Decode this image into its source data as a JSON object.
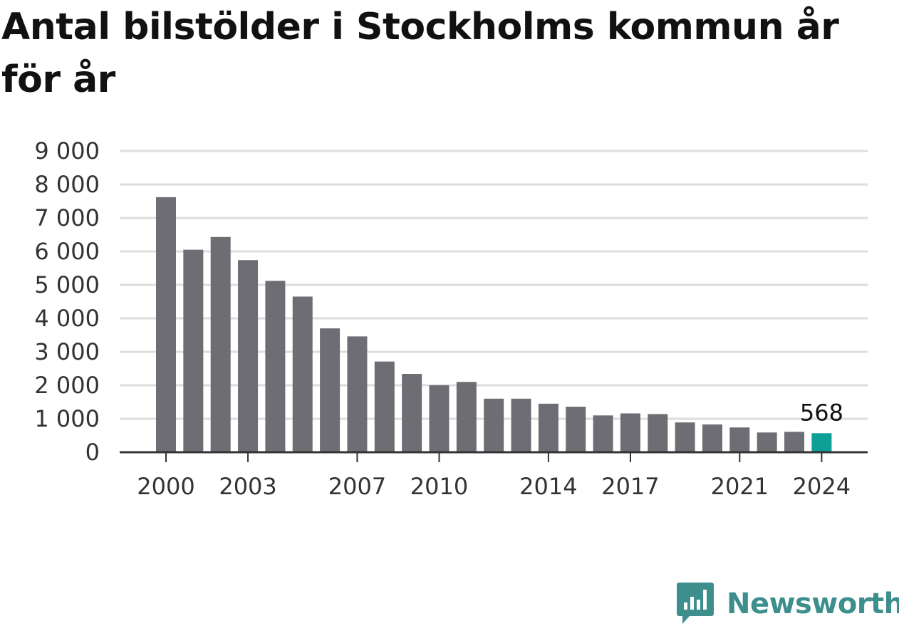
{
  "chart_data": {
    "type": "bar",
    "title": "Antal bilstölder i Stockholms kommun år för år",
    "xlabel": "",
    "ylabel": "",
    "ylim": [
      0,
      9000
    ],
    "y_ticks": [
      0,
      1000,
      2000,
      3000,
      4000,
      5000,
      6000,
      7000,
      8000,
      9000
    ],
    "y_tick_labels": [
      "0",
      "1 000",
      "2 000",
      "3 000",
      "4 000",
      "5 000",
      "6 000",
      "7 000",
      "8 000",
      "9 000"
    ],
    "x_tick_labels": [
      "2000",
      "2003",
      "2007",
      "2010",
      "2014",
      "2017",
      "2021",
      "2024"
    ],
    "grid": true,
    "categories": [
      "2000",
      "2001",
      "2002",
      "2003",
      "2004",
      "2005",
      "2006",
      "2007",
      "2008",
      "2009",
      "2010",
      "2011",
      "2012",
      "2013",
      "2014",
      "2015",
      "2016",
      "2017",
      "2018",
      "2019",
      "2020",
      "2021",
      "2022",
      "2023",
      "2024"
    ],
    "values": [
      7620,
      6050,
      6430,
      5740,
      5120,
      4650,
      3700,
      3460,
      2710,
      2340,
      2000,
      2100,
      1600,
      1600,
      1450,
      1360,
      1100,
      1160,
      1140,
      890,
      830,
      740,
      590,
      610,
      568
    ],
    "highlight": {
      "category": "2024",
      "label": "568"
    },
    "colors": {
      "bar": "#6e6d73",
      "highlight": "#0e9f97",
      "grid": "#dddddd",
      "axis": "#333333"
    }
  },
  "logo": {
    "name": "newsworthy-logo",
    "text": "Newsworthy",
    "color": "#3d8f8d"
  }
}
